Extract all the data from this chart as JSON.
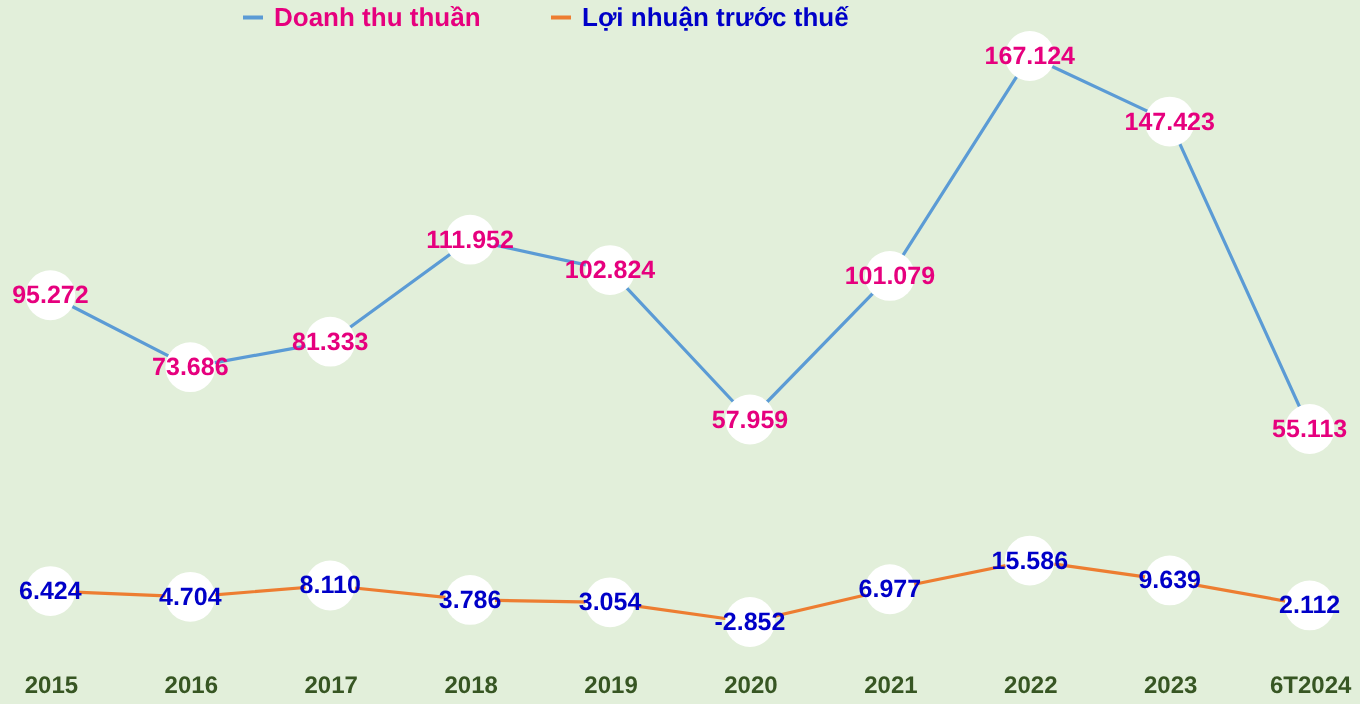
{
  "chart_data": {
    "type": "line",
    "categories": [
      "2015",
      "2016",
      "2017",
      "2018",
      "2019",
      "2020",
      "2021",
      "2022",
      "2023",
      "6T2024"
    ],
    "series": [
      {
        "name": "Doanh thu thuần",
        "color": "#5b9bd5",
        "values": [
          95.272,
          73.686,
          81.333,
          111.952,
          102.824,
          57.959,
          101.079,
          167.124,
          147.423,
          55.113
        ],
        "value_labels": [
          "95.272",
          "73.686",
          "81.333",
          "111.952",
          "102.824",
          "57.959",
          "101.079",
          "167.124",
          "147.423",
          "55.113"
        ]
      },
      {
        "name": "Lợi nhuận trước thuế",
        "color": "#ed7d31",
        "values": [
          6.424,
          4.704,
          8.11,
          3.786,
          3.054,
          -2.852,
          6.977,
          15.586,
          9.639,
          2.112
        ],
        "value_labels": [
          "6.424",
          "4.704",
          "8.110",
          "3.786",
          "3.054",
          "-2.852",
          "6.977",
          "15.586",
          "9.639",
          "2.112"
        ]
      }
    ],
    "legend": "top",
    "marker": "circle",
    "line_style": "solid",
    "grid": false,
    "tick_labels": "x"
  }
}
